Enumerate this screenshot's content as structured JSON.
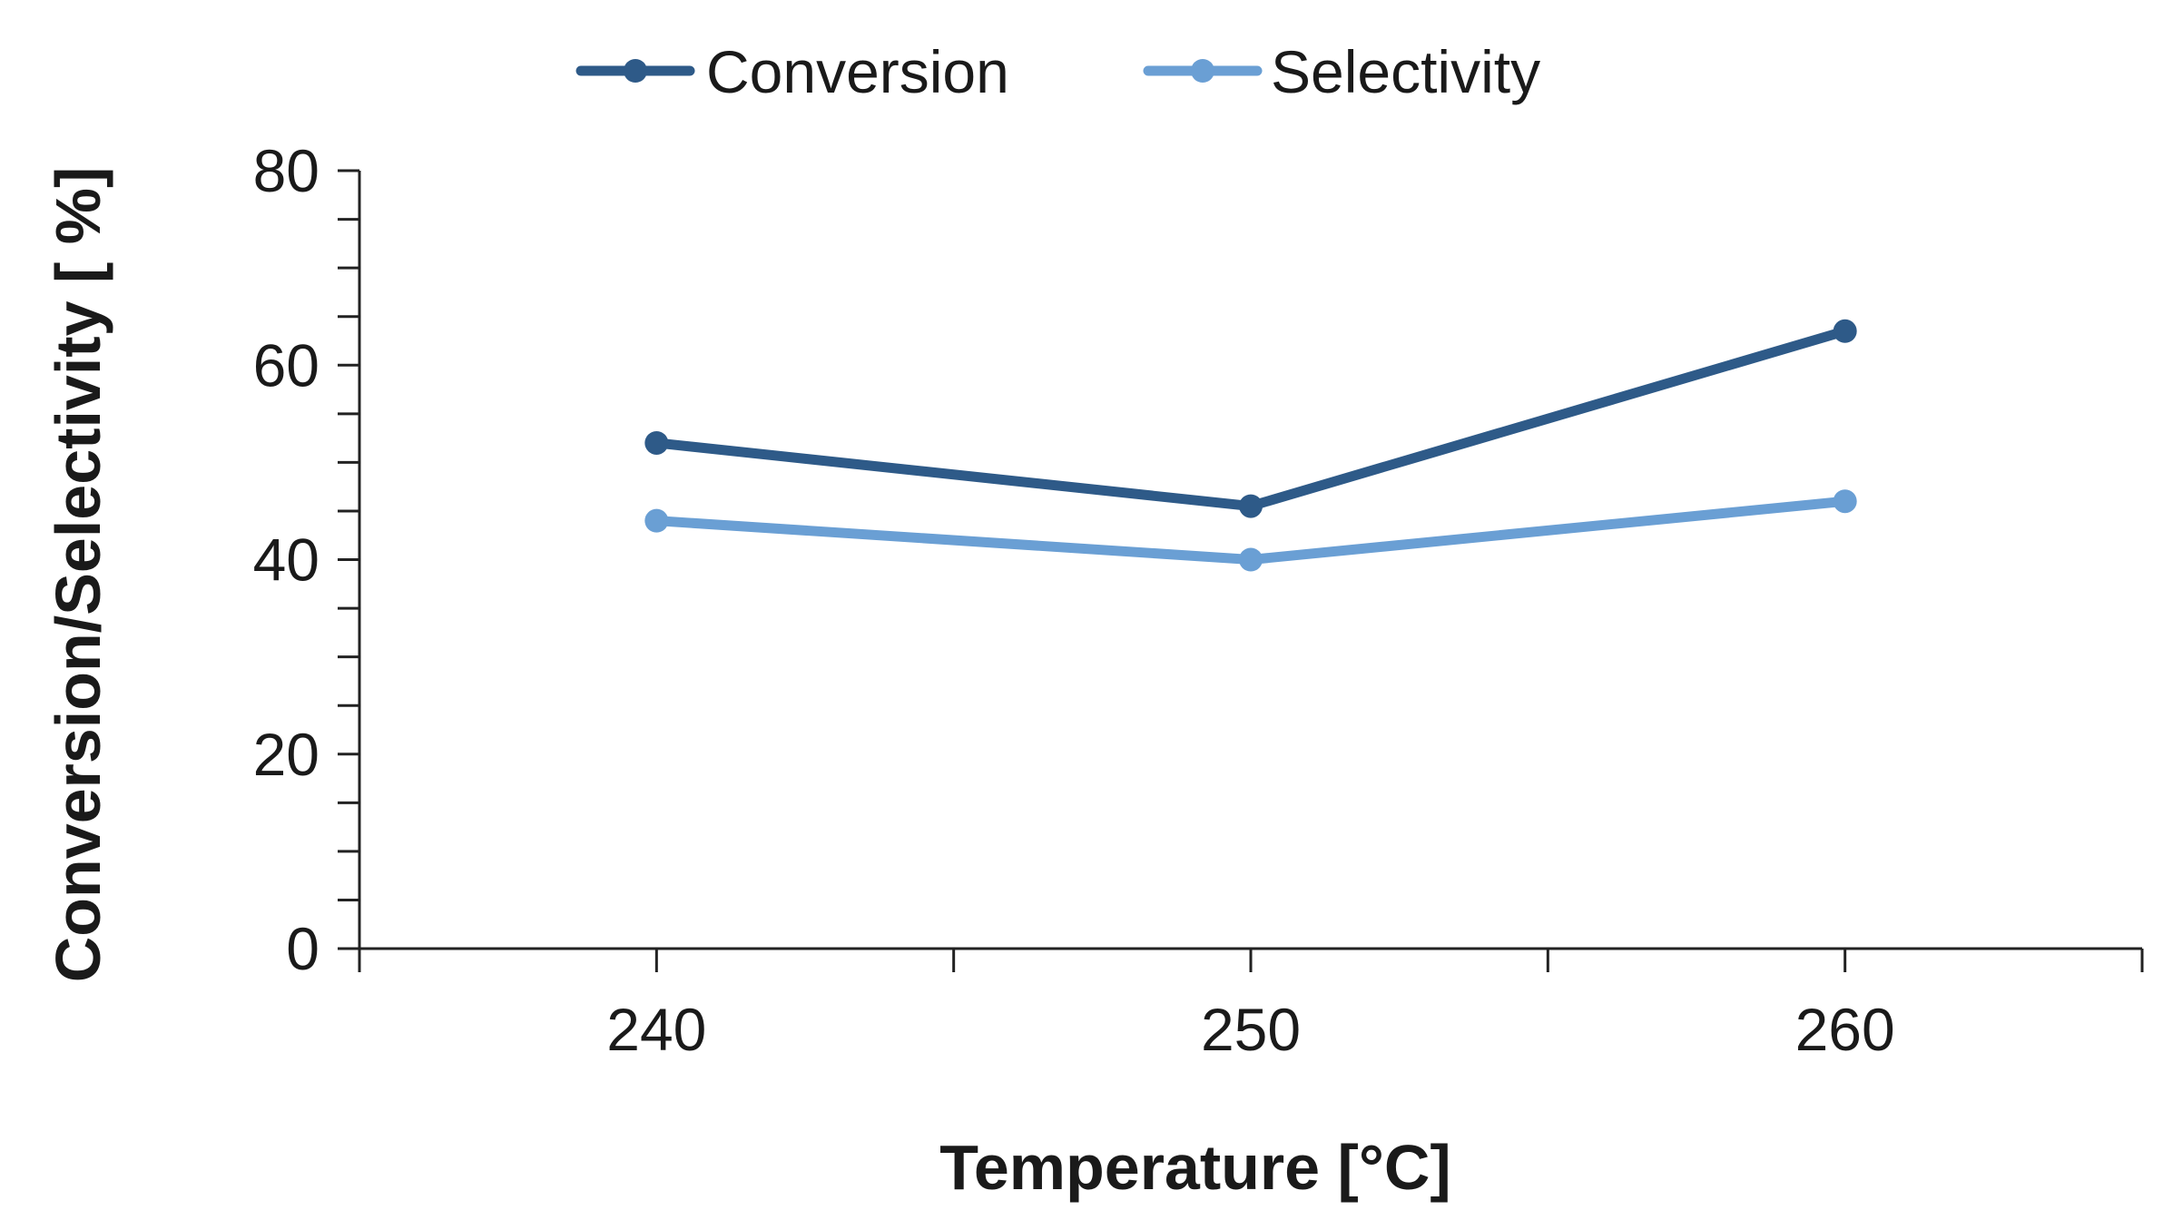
{
  "chart_data": {
    "type": "line",
    "title": "",
    "xlabel": "Temperature [°C]",
    "ylabel": "Conversion/Selectivity [ %]",
    "x": [
      240,
      250,
      260
    ],
    "xlim": [
      235,
      265
    ],
    "x_ticks": [
      235,
      240,
      245,
      250,
      255,
      260,
      265
    ],
    "x_tick_labels": [
      "240",
      "250",
      "260"
    ],
    "ylim": [
      0,
      80
    ],
    "y_major_ticks": [
      0,
      20,
      40,
      60,
      80
    ],
    "y_minor_step": 5,
    "y_tick_labels": [
      "0",
      "20",
      "40",
      "60",
      "80"
    ],
    "grid": false,
    "legend_position": "top",
    "series": [
      {
        "name": "Conversion",
        "color": "#2e5a88",
        "values": [
          52,
          45.5,
          63.5
        ]
      },
      {
        "name": "Selectivity",
        "color": "#6a9fd4",
        "values": [
          44,
          40,
          46
        ]
      }
    ]
  }
}
